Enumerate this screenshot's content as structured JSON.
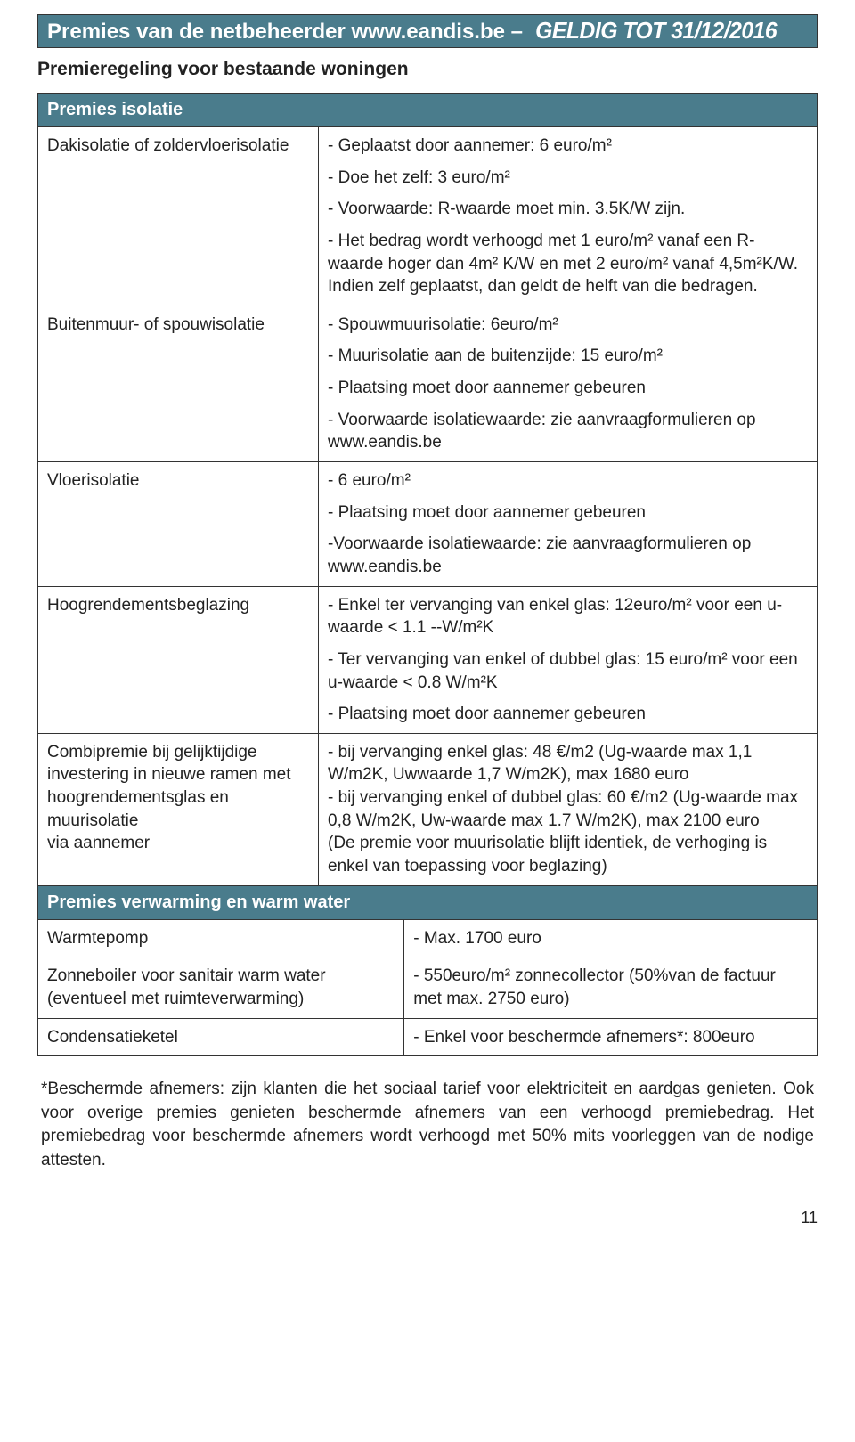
{
  "header": {
    "title": "Premies van de netbeheerder ",
    "url": "www.eandis.be",
    "sep": " – ",
    "validity": "GELDIG TOT 31/12/2016"
  },
  "subheading": "Premieregeling voor bestaande woningen",
  "section1_header": "Premies isolatie",
  "rows1": [
    {
      "label": "Dakisolatie of zoldervloerisolatie",
      "paras": [
        "- Geplaatst door aannemer: 6 euro/m²",
        "- Doe het zelf: 3 euro/m²",
        "- Voorwaarde: R-waarde moet min. 3.5K/W zijn.",
        "- Het bedrag wordt verhoogd met 1 euro/m² vanaf een R-waarde hoger dan 4m² K/W en met 2 euro/m² vanaf 4,5m²K/W. Indien zelf geplaatst, dan geldt de helft van die bedragen."
      ]
    },
    {
      "label": "Buitenmuur- of spouwisolatie",
      "paras": [
        "- Spouwmuurisolatie: 6euro/m²",
        "- Muurisolatie aan de buitenzijde: 15 euro/m²",
        "- Plaatsing moet door aannemer gebeuren",
        "- Voorwaarde isolatiewaarde: zie aanvraagformulieren op www.eandis.be"
      ]
    },
    {
      "label": "Vloerisolatie",
      "paras": [
        "- 6 euro/m²",
        "- Plaatsing moet door aannemer gebeuren",
        "-Voorwaarde isolatiewaarde: zie aanvraagformulieren op www.eandis.be"
      ]
    },
    {
      "label": "Hoogrendementsbeglazing",
      "paras": [
        "- Enkel ter vervanging van enkel glas: 12euro/m² voor een u-waarde < 1.1 --W/m²K",
        "- Ter vervanging van enkel of dubbel glas: 15 euro/m² voor een u-waarde < 0.8 W/m²K",
        "- Plaatsing moet door aannemer gebeuren"
      ]
    },
    {
      "label": "Combipremie bij gelijktijdige investering in nieuwe ramen met hoogrendementsglas en muurisolatie\nvia aannemer",
      "paras": [
        "- bij vervanging enkel glas: 48 €/m2 (Ug-waarde max 1,1 W/m2K, Uwwaarde 1,7 W/m2K), max 1680 euro\n- bij vervanging enkel of dubbel glas: 60 €/m2 (Ug-waarde max 0,8 W/m2K, Uw-waarde max 1.7 W/m2K), max 2100 euro\n(De premie voor muurisolatie blijft identiek, de verhoging is enkel van toepassing voor beglazing)"
      ]
    }
  ],
  "section2_header": "Premies verwarming en warm water",
  "rows2": [
    {
      "label": "Warmtepomp",
      "value": "- Max. 1700 euro"
    },
    {
      "label": "Zonneboiler voor sanitair warm water (eventueel met ruimteverwarming)",
      "value": "- 550euro/m² zonnecollector (50%van de factuur met max. 2750 euro)"
    },
    {
      "label": "Condensatieketel",
      "value": "- Enkel voor beschermde afnemers*: 800euro"
    }
  ],
  "footnote": "*Beschermde afnemers: zijn klanten die het sociaal tarief voor elektriciteit en aardgas genieten. Ook voor overige premies genieten beschermde afnemers van een verhoogd premiebedrag. Het premiebedrag voor beschermde afnemers wordt verhoogd met 50% mits voorleggen van de nodige attesten.",
  "page_number": "11",
  "colors": {
    "header_bg": "#4a7c8c",
    "header_fg": "#ffffff",
    "border": "#333333",
    "body_text": "#222222",
    "page_bg": "#ffffff"
  },
  "fonts": {
    "body_family": "Arial Narrow",
    "body_size_pt": 14,
    "header_size_pt": 18,
    "subheading_size_pt": 16
  }
}
